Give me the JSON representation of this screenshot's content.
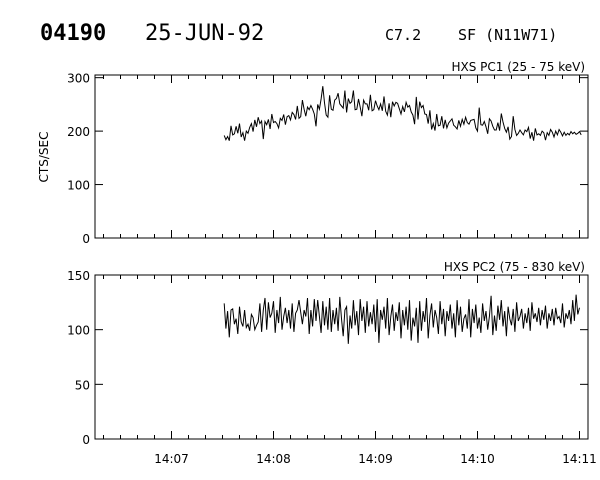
{
  "header": {
    "event_id": "04190",
    "date": "25-JUN-92",
    "flare_class": "C7.2",
    "location": "SF (N11W71)"
  },
  "chart_data": [
    {
      "type": "line",
      "title": "HXS PC1 (25 - 75 keV)",
      "ylabel": "CTS/SEC",
      "xlabel": "",
      "xlim": [
        "14:06:15",
        "14:11:05"
      ],
      "ylim": [
        0,
        305
      ],
      "yticks": [
        0,
        100,
        200,
        300
      ],
      "xticks": [
        "14:07",
        "14:08",
        "14:09",
        "14:10",
        "14:11"
      ],
      "show_xtick_labels": false,
      "series": [
        {
          "t_start": "14:07:31",
          "dt_sec": 1,
          "values": [
            192,
            184,
            190,
            182,
            210,
            193,
            195,
            209,
            196,
            214,
            189,
            197,
            182,
            200,
            196,
            207,
            214,
            199,
            221,
            208,
            226,
            214,
            219,
            185,
            218,
            212,
            222,
            204,
            232,
            216,
            218,
            214,
            206,
            224,
            220,
            231,
            212,
            227,
            229,
            221,
            235,
            231,
            222,
            247,
            224,
            227,
            258,
            241,
            228,
            245,
            240,
            248,
            241,
            232,
            209,
            250,
            241,
            260,
            284,
            253,
            230,
            226,
            267,
            241,
            239,
            258,
            261,
            271,
            251,
            247,
            243,
            276,
            235,
            261,
            252,
            255,
            276,
            240,
            241,
            260,
            245,
            228,
            258,
            251,
            251,
            239,
            268,
            238,
            240,
            257,
            247,
            240,
            251,
            238,
            265,
            237,
            230,
            252,
            226,
            255,
            247,
            254,
            252,
            242,
            232,
            246,
            236,
            254,
            245,
            248,
            236,
            230,
            213,
            264,
            222,
            255,
            244,
            248,
            232,
            231,
            214,
            239,
            203,
            214,
            201,
            232,
            210,
            211,
            228,
            205,
            221,
            206,
            215,
            219,
            223,
            211,
            208,
            204,
            220,
            209,
            222,
            213,
            226,
            216,
            213,
            220,
            221,
            222,
            206,
            200,
            244,
            212,
            211,
            218,
            208,
            195,
            223,
            219,
            209,
            202,
            202,
            216,
            201,
            233,
            217,
            205,
            198,
            208,
            185,
            190,
            228,
            203,
            192,
            196,
            202,
            197,
            193,
            202,
            199,
            207,
            186,
            198,
            182,
            205,
            193,
            195,
            192,
            200,
            197,
            183,
            197,
            192,
            203,
            198,
            189,
            200,
            193,
            203,
            198,
            191,
            198,
            192,
            196,
            193,
            199,
            195,
            198,
            194,
            196,
            199,
            193
          ]
        }
      ]
    },
    {
      "type": "line",
      "title": "HXS PC2 (75 - 830 keV)",
      "ylabel": "",
      "xlabel": "",
      "xlim": [
        "14:06:15",
        "14:11:05"
      ],
      "ylim": [
        0,
        150
      ],
      "yticks": [
        0,
        50,
        100,
        150
      ],
      "xticks": [
        "14:07",
        "14:08",
        "14:09",
        "14:10",
        "14:11"
      ],
      "show_xtick_labels": true,
      "series": [
        {
          "t_start": "14:07:31",
          "dt_sec": 1,
          "values": [
            124,
            101,
            117,
            93,
            118,
            119,
            105,
            110,
            96,
            121,
            107,
            103,
            118,
            102,
            105,
            99,
            114,
            111,
            100,
            104,
            107,
            124,
            98,
            118,
            129,
            100,
            125,
            111,
            115,
            126,
            97,
            118,
            106,
            130,
            100,
            112,
            120,
            106,
            118,
            101,
            124,
            98,
            115,
            118,
            127,
            116,
            105,
            118,
            112,
            129,
            96,
            118,
            103,
            128,
            108,
            127,
            112,
            97,
            126,
            104,
            121,
            100,
            129,
            98,
            118,
            105,
            120,
            99,
            130,
            110,
            94,
            118,
            121,
            87,
            113,
            101,
            127,
            104,
            117,
            95,
            128,
            108,
            121,
            97,
            126,
            103,
            116,
            105,
            123,
            98,
            128,
            88,
            118,
            109,
            121,
            101,
            129,
            95,
            112,
            123,
            99,
            116,
            108,
            125,
            92,
            118,
            104,
            121,
            100,
            127,
            90,
            111,
            103,
            120,
            88,
            126,
            99,
            117,
            107,
            129,
            92,
            113,
            124,
            102,
            118,
            111,
            96,
            126,
            105,
            119,
            94,
            117,
            108,
            123,
            101,
            115,
            93,
            127,
            104,
            121,
            98,
            110,
            114,
            101,
            128,
            93,
            119,
            106,
            123,
            101,
            111,
            97,
            124,
            108,
            117,
            100,
            112,
            131,
            95,
            113,
            99,
            122,
            109,
            127,
            103,
            117,
            94,
            121,
            110,
            104,
            119,
            98,
            125,
            108,
            112,
            119,
            101,
            115,
            106,
            120,
            99,
            125,
            110,
            115,
            107,
            120,
            104,
            118,
            109,
            122,
            101,
            115,
            108,
            119,
            104,
            120,
            110,
            112,
            106,
            124,
            102,
            115,
            110,
            118,
            105,
            127,
            108,
            132,
            114,
            120
          ]
        }
      ]
    }
  ]
}
